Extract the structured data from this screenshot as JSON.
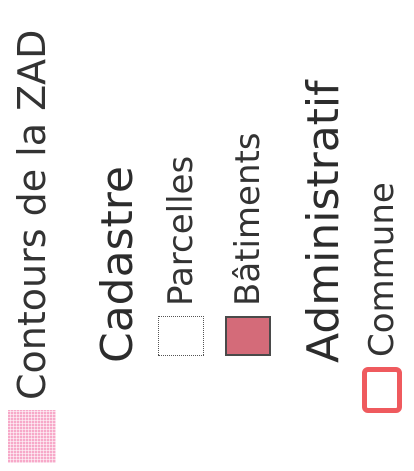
{
  "legend": {
    "zad": {
      "label": "Contours de la ZAD",
      "symbol": "hatched-pink-fill",
      "color": "#f7a9c9"
    },
    "cadastre": {
      "heading": "Cadastre",
      "parcelles": {
        "label": "Parcelles",
        "symbol": "dotted-outline",
        "color": "#555555"
      },
      "batiments": {
        "label": "Bâtiments",
        "symbol": "filled-box",
        "color": "#d46b79"
      }
    },
    "administratif": {
      "heading": "Administratif",
      "commune": {
        "label": "Commune",
        "symbol": "red-outline",
        "color": "#ef5a5e"
      }
    }
  }
}
